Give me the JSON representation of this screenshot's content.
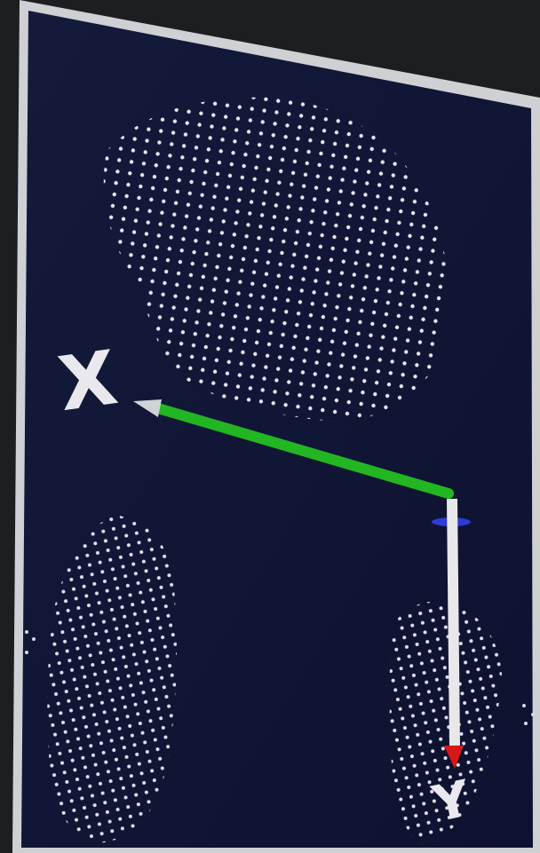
{
  "viewer": {
    "axis_labels": {
      "x": "X",
      "y": "Y"
    }
  }
}
